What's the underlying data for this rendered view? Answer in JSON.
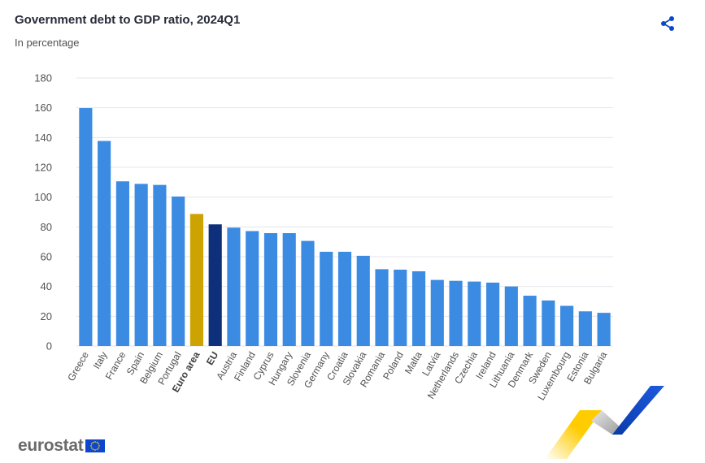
{
  "header": {
    "title": "Government debt to GDP ratio, 2024Q1",
    "subtitle": "In percentage"
  },
  "icons": {
    "share": "share-icon",
    "flag": "eu-flag-icon"
  },
  "footer": {
    "logo_text": "eurostat"
  },
  "colors": {
    "bar_default": "#3b8be3",
    "bar_euro_area": "#cca300",
    "bar_eu": "#0e2f7a",
    "grid": "#e4e4ec",
    "brand_blue": "#0e47cb",
    "brand_yellow": "#ffcc00"
  },
  "chart_data": {
    "type": "bar",
    "title": "Government debt to GDP ratio, 2024Q1",
    "subtitle": "In percentage",
    "ylim": [
      0,
      180
    ],
    "yticks": [
      0,
      20,
      40,
      60,
      80,
      100,
      120,
      140,
      160,
      180
    ],
    "grid": true,
    "categories": [
      "Greece",
      "Italy",
      "France",
      "Spain",
      "Belgium",
      "Portugal",
      "Euro area",
      "EU",
      "Austria",
      "Finland",
      "Cyprus",
      "Hungary",
      "Slovenia",
      "Germany",
      "Croatia",
      "Slovakia",
      "Romania",
      "Poland",
      "Malta",
      "Latvia",
      "Netherlands",
      "Czechia",
      "Ireland",
      "Lithuania",
      "Denmark",
      "Sweden",
      "Luxembourg",
      "Estonia",
      "Bulgaria"
    ],
    "values": [
      159.8,
      137.7,
      110.6,
      108.9,
      108.2,
      100.4,
      88.7,
      81.7,
      79.5,
      77.2,
      75.8,
      75.8,
      70.6,
      63.3,
      63.3,
      60.6,
      51.6,
      51.3,
      50.2,
      44.4,
      43.8,
      43.3,
      42.6,
      40.0,
      33.8,
      30.6,
      27.0,
      23.3,
      22.3
    ],
    "highlight": {
      "Euro area": "#cca300",
      "EU": "#0e2f7a"
    },
    "bold_categories": [
      "Euro area",
      "EU"
    ]
  }
}
